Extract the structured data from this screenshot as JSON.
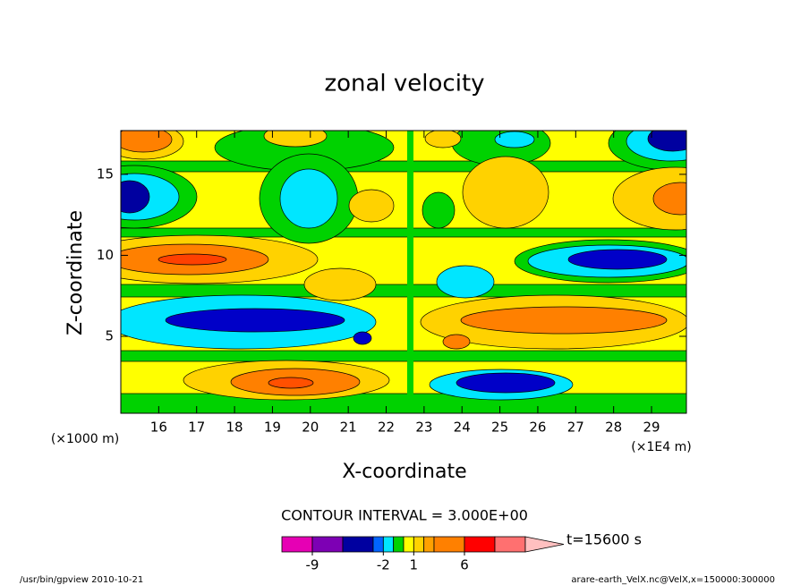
{
  "chart_data": {
    "type": "contour",
    "title": "zonal velocity",
    "xlabel": "X-coordinate",
    "ylabel": "Z-coordinate",
    "x_unit": "(×1E4 m)",
    "y_unit": "(×1000 m)",
    "xlim": [
      15,
      29.92
    ],
    "ylim": [
      0.25,
      17.7
    ],
    "xticks": [
      16,
      17,
      18,
      19,
      20,
      21,
      22,
      23,
      24,
      25,
      26,
      27,
      28,
      29
    ],
    "yticks": [
      5,
      10,
      15
    ],
    "contour_interval": "CONTOUR INTERVAL = 3.000E+00",
    "colorbar": {
      "levels": [
        -12,
        -9,
        -6,
        -3,
        -2,
        -1,
        0,
        1,
        2,
        3,
        6,
        9,
        12
      ],
      "colors": [
        "#e600b4",
        "#7d00b4",
        "#0000a0",
        "#0064ff",
        "#00e6ff",
        "#00d200",
        "#ffff00",
        "#ffd200",
        "#ffa000",
        "#ff8000",
        "#ff0000",
        "#ff7070"
      ],
      "extend_color": "#ffc0c0",
      "ticks": [
        -9,
        -2,
        1,
        6
      ]
    },
    "time_label": "t=15600 s"
  },
  "footer": {
    "left": "/usr/bin/gpview  2010-10-21",
    "right": "arare-earth_VelX.nc@VelX,x=150000:300000"
  }
}
